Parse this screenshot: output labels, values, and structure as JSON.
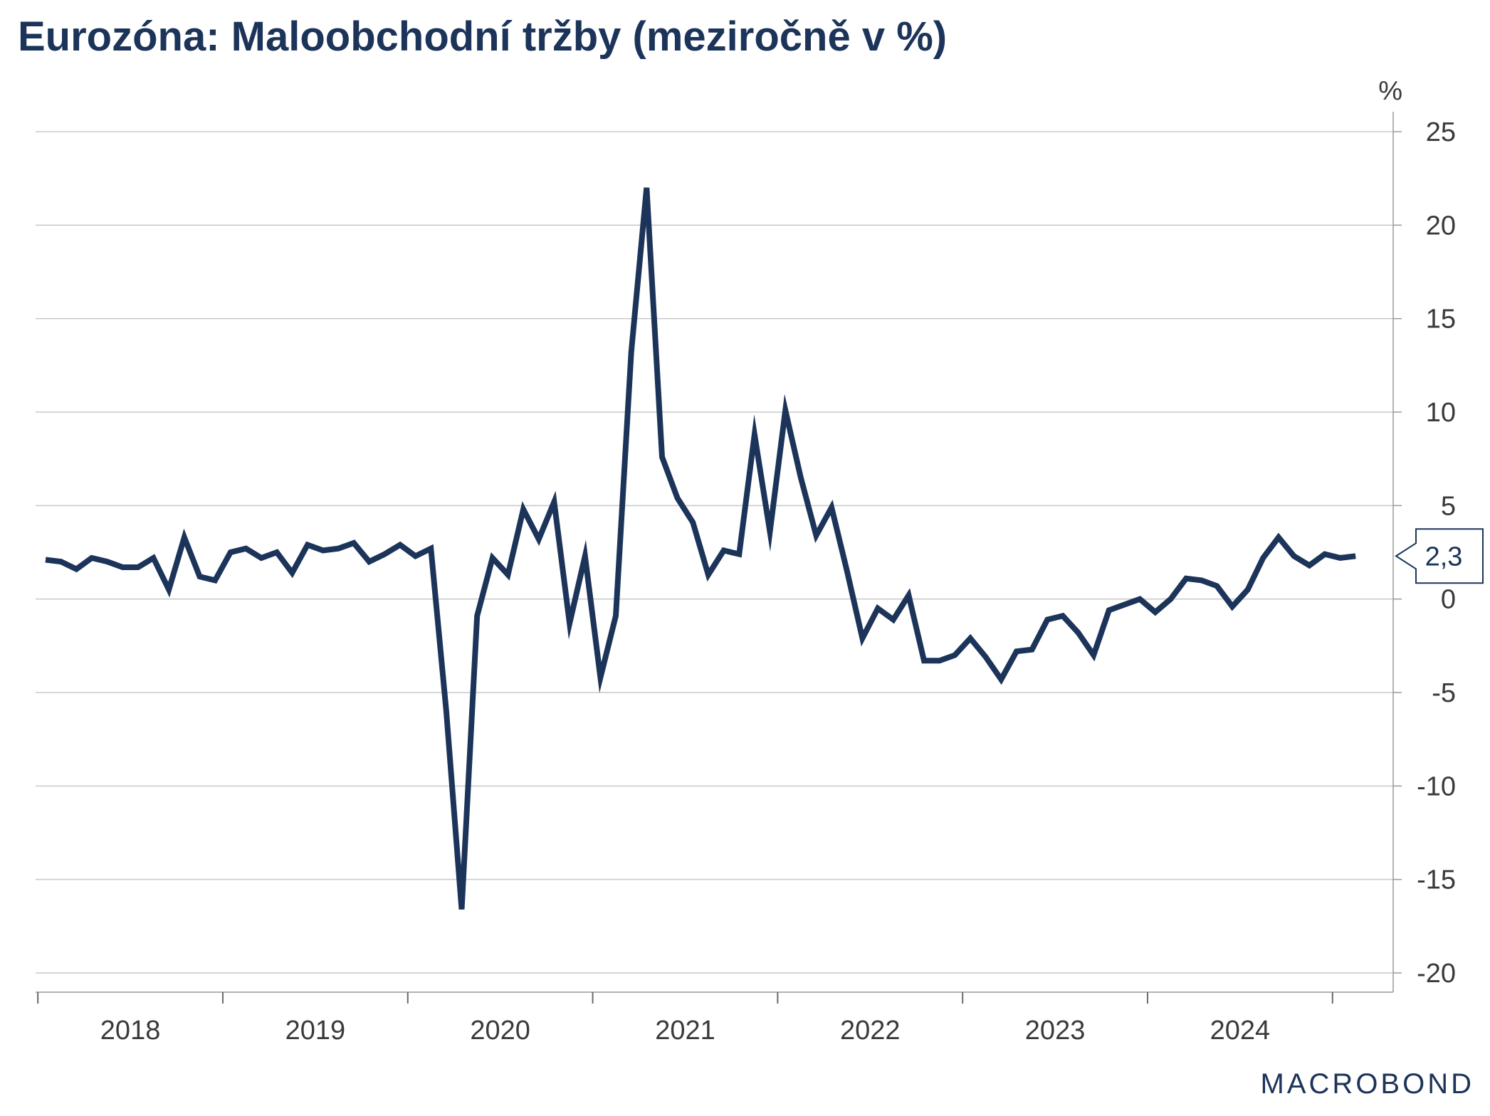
{
  "title": "Eurozóna: Maloobchodní tržby (meziročně v %)",
  "unit_label": "%",
  "last_value_label": "2,3",
  "logo_text": "MACROBOND",
  "colors": {
    "line": "#1c3459",
    "grid": "#c8c8c8",
    "text": "#3a3a3a",
    "title": "#1c3459"
  },
  "chart_data": {
    "type": "line",
    "title": "Eurozóna: Maloobchodní tržby (meziročně v %)",
    "ylabel": "%",
    "xlabel": "",
    "y_axis_position": "right",
    "ylim": [
      -20,
      25
    ],
    "yticks": [
      25,
      20,
      15,
      10,
      5,
      0,
      -5,
      -10,
      -15,
      -20
    ],
    "grid": true,
    "x_start": "2018-01",
    "x_frequency": "monthly",
    "x_tick_labels": [
      "2018",
      "2019",
      "2020",
      "2021",
      "2022",
      "2023",
      "2024"
    ],
    "series": [
      {
        "values": [
          2.1,
          2.0,
          1.6,
          2.2,
          2.0,
          1.7,
          1.7,
          2.2,
          0.5,
          3.3,
          1.2,
          1.0,
          2.5,
          2.7,
          2.2,
          2.5,
          1.4,
          2.9,
          2.6,
          2.7,
          3.0,
          2.0,
          2.4,
          2.9,
          2.3,
          2.7,
          -6.0,
          -16.6,
          -0.9,
          2.2,
          1.3,
          4.8,
          3.2,
          5.2,
          -1.3,
          2.3,
          -4.2,
          -0.9,
          13.2,
          22.0,
          7.6,
          5.4,
          4.1,
          1.3,
          2.6,
          2.4,
          8.8,
          3.6,
          10.1,
          6.5,
          3.4,
          4.9,
          1.5,
          -2.1,
          -0.5,
          -1.1,
          0.2,
          -3.3,
          -3.3,
          -3.0,
          -2.1,
          -3.1,
          -4.3,
          -2.8,
          -2.7,
          -1.1,
          -0.9,
          -1.8,
          -3.0,
          -0.6,
          -0.3,
          0.0,
          -0.7,
          0.0,
          1.1,
          1.0,
          0.7,
          -0.4,
          0.5,
          2.2,
          3.3,
          2.3,
          1.8,
          2.4,
          2.2,
          2.3
        ],
        "last_value": 2.3
      }
    ]
  }
}
